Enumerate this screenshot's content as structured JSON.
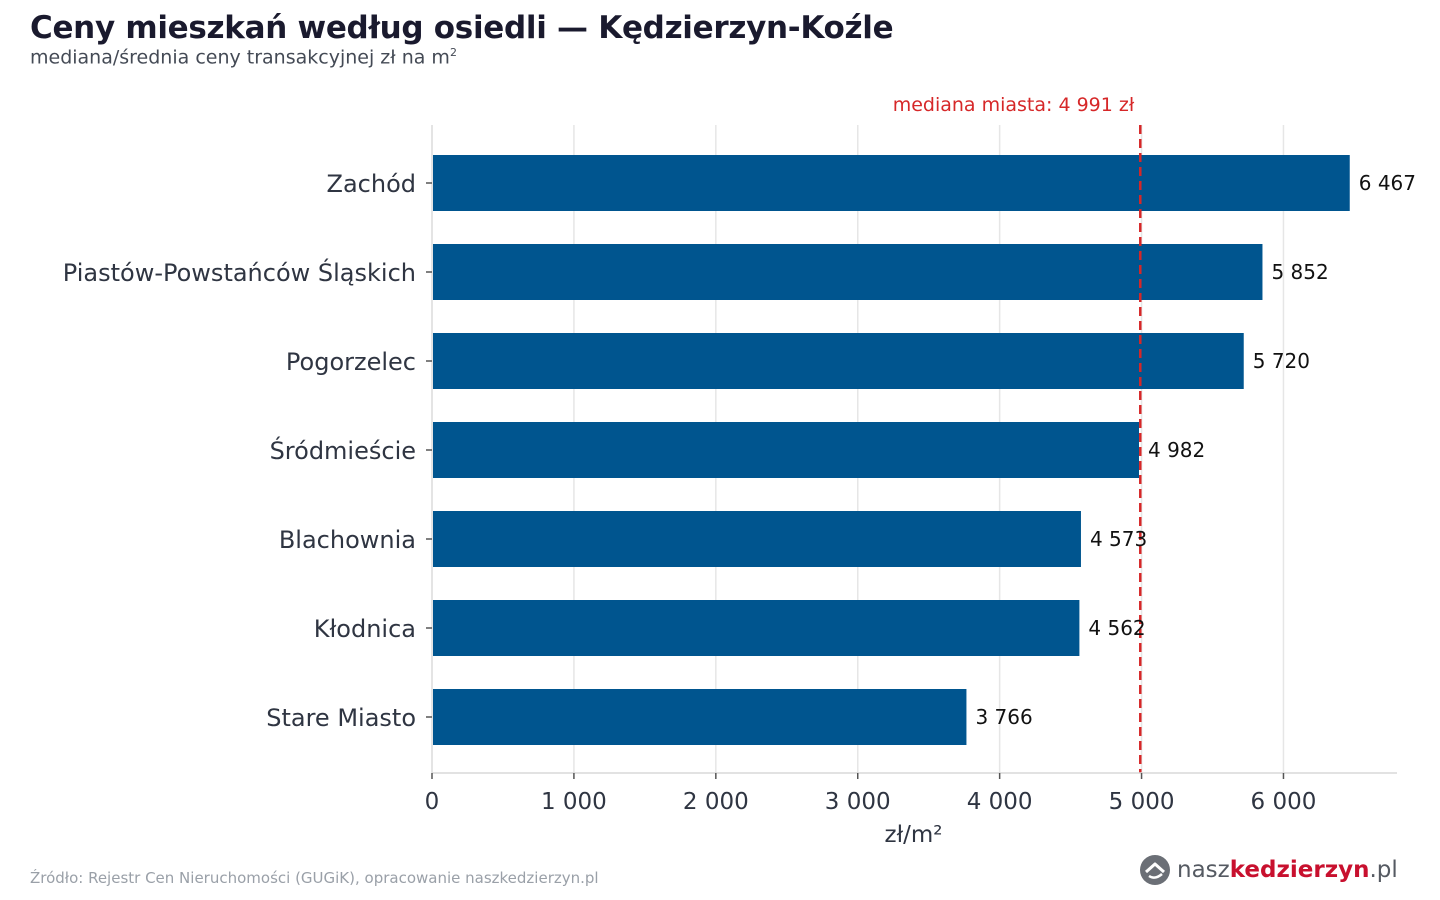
{
  "header": {
    "title": "Ceny mieszkań według osiedli — Kędzierzyn-Koźle",
    "subtitle": "mediana/średnia ceny transakcyjnej zł na m",
    "subtitle_sup": "2"
  },
  "footer": {
    "source": "Źródło: Rejestr Cen Nieruchomości (GUGiK), opracowanie naszkedzierzyn.pl"
  },
  "logo": {
    "part1": "nasz",
    "part2": "kedzierzyn",
    "part3": ".pl",
    "icon": "house-swirl-icon"
  },
  "colors": {
    "bar": "#00558f",
    "reference_line": "#d62728",
    "grid": "#e6e6e6"
  },
  "chart_data": {
    "type": "bar",
    "orientation": "horizontal",
    "categories": [
      "Zachód",
      "Piastów-Powstańców Śląskich",
      "Pogorzelec",
      "Śródmieście",
      "Blachownia",
      "Kłodnica",
      "Stare Miasto"
    ],
    "values": [
      6467,
      5852,
      5720,
      4982,
      4573,
      4562,
      3766
    ],
    "value_labels": [
      "6 467",
      "5 852",
      "5 720",
      "4 982",
      "4 573",
      "4 562",
      "3 766"
    ],
    "xlabel": "zł/m²",
    "xlim": [
      0,
      6800
    ],
    "xticks": [
      0,
      1000,
      2000,
      3000,
      4000,
      5000,
      6000
    ],
    "xtick_labels": [
      "0",
      "1 000",
      "2 000",
      "3 000",
      "4 000",
      "5 000",
      "6 000"
    ],
    "grid": true,
    "reference_line": {
      "value": 4991,
      "label": "mediana miasta: 4 991 zł"
    }
  }
}
